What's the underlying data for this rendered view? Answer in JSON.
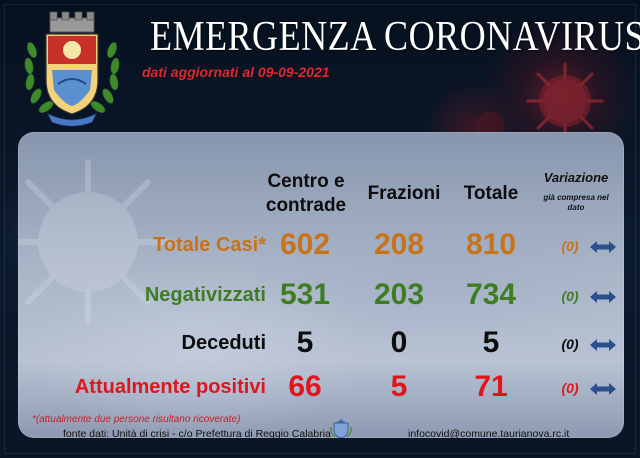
{
  "header": {
    "title": "EMERGENZA CORONAVIRUS",
    "date_text": "dati aggiornati al 09-09-2021"
  },
  "columns": {
    "col1_line1": "Centro e",
    "col1_line2": "contrade",
    "col2": "Frazioni",
    "col3": "Totale",
    "var_title": "Variazione",
    "var_sub1": "già compresa nel",
    "var_sub2": "dato"
  },
  "rows": [
    {
      "label": "Totale Casi*",
      "centro": "602",
      "frazioni": "208",
      "totale": "810",
      "variazione": "(0)",
      "color": "#c8731a"
    },
    {
      "label": "Negativizzati",
      "centro": "531",
      "frazioni": "203",
      "totale": "734",
      "variazione": "(0)",
      "color": "#3f7d23"
    },
    {
      "label": "Deceduti",
      "centro": "5",
      "frazioni": "0",
      "totale": "5",
      "variazione": "(0)",
      "color": "#0c0c0c"
    },
    {
      "label": "Attualmente positivi",
      "centro": "66",
      "frazioni": "5",
      "totale": "71",
      "variazione": "(0)",
      "color": "#e0161d"
    }
  ],
  "footer": {
    "note": "*(attualmente due persone risultano ricoverate)",
    "source": "fonte dati: Unità di crisi - c/o Prefettura di Reggio Calabria",
    "email": "infocovid@comune.taurianova.rc.it"
  },
  "colors": {
    "accent_red": "#e3262b",
    "arrow_blue": "#2a4f8f"
  },
  "icons": [
    "municipal-crest",
    "left-right-arrow-icon",
    "coronavirus-decoration",
    "coat-of-arms-small"
  ]
}
